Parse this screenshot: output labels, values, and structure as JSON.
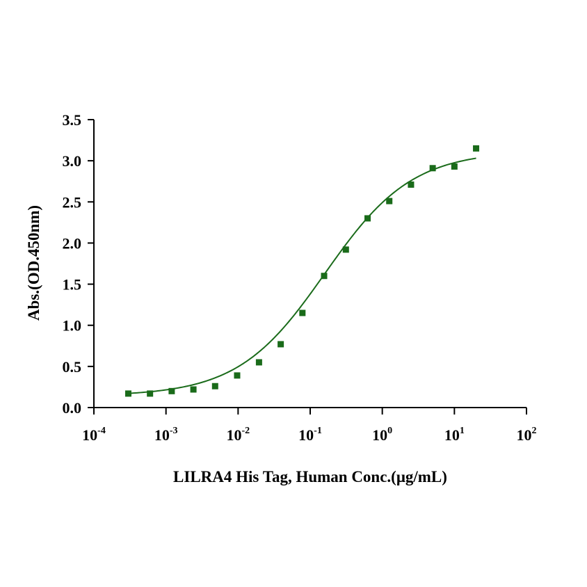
{
  "chart_data": {
    "type": "scatter",
    "title": "",
    "xlabel": "LILRA4 His Tag, Human Conc.(μg/mL)",
    "ylabel": "Abs.(OD.450nm)",
    "x_scale": "log",
    "xlim": [
      0.0001,
      100
    ],
    "ylim": [
      0,
      3.5
    ],
    "x_ticks": [
      {
        "base": "10",
        "exp": "-4"
      },
      {
        "base": "10",
        "exp": "-3"
      },
      {
        "base": "10",
        "exp": "-2"
      },
      {
        "base": "10",
        "exp": "-1"
      },
      {
        "base": "10",
        "exp": "0"
      },
      {
        "base": "10",
        "exp": "1"
      },
      {
        "base": "10",
        "exp": "2"
      }
    ],
    "y_ticks": [
      "0.0",
      "0.5",
      "1.0",
      "1.5",
      "2.0",
      "2.5",
      "3.0",
      "3.5"
    ],
    "grid": false,
    "legend": "none",
    "marker_color": "#1a6b1a",
    "curve_color": "#1a6b1a",
    "series": [
      {
        "marker": "square",
        "points": [
          {
            "x": 0.0003,
            "y": 0.17
          },
          {
            "x": 0.0006,
            "y": 0.17
          },
          {
            "x": 0.0012,
            "y": 0.2
          },
          {
            "x": 0.0024,
            "y": 0.22
          },
          {
            "x": 0.0048,
            "y": 0.26
          },
          {
            "x": 0.0097,
            "y": 0.39
          },
          {
            "x": 0.0195,
            "y": 0.55
          },
          {
            "x": 0.039,
            "y": 0.77
          },
          {
            "x": 0.078,
            "y": 1.15
          },
          {
            "x": 0.156,
            "y": 1.6
          },
          {
            "x": 0.3125,
            "y": 1.92
          },
          {
            "x": 0.625,
            "y": 2.3
          },
          {
            "x": 1.25,
            "y": 2.51
          },
          {
            "x": 2.5,
            "y": 2.71
          },
          {
            "x": 5,
            "y": 2.91
          },
          {
            "x": 10,
            "y": 2.93
          },
          {
            "x": 20,
            "y": 3.15
          }
        ]
      }
    ],
    "fit_curve": {
      "model": "4PL",
      "bottom": 0.14,
      "top": 3.12,
      "ec50": 0.16,
      "hill": 0.72
    }
  }
}
